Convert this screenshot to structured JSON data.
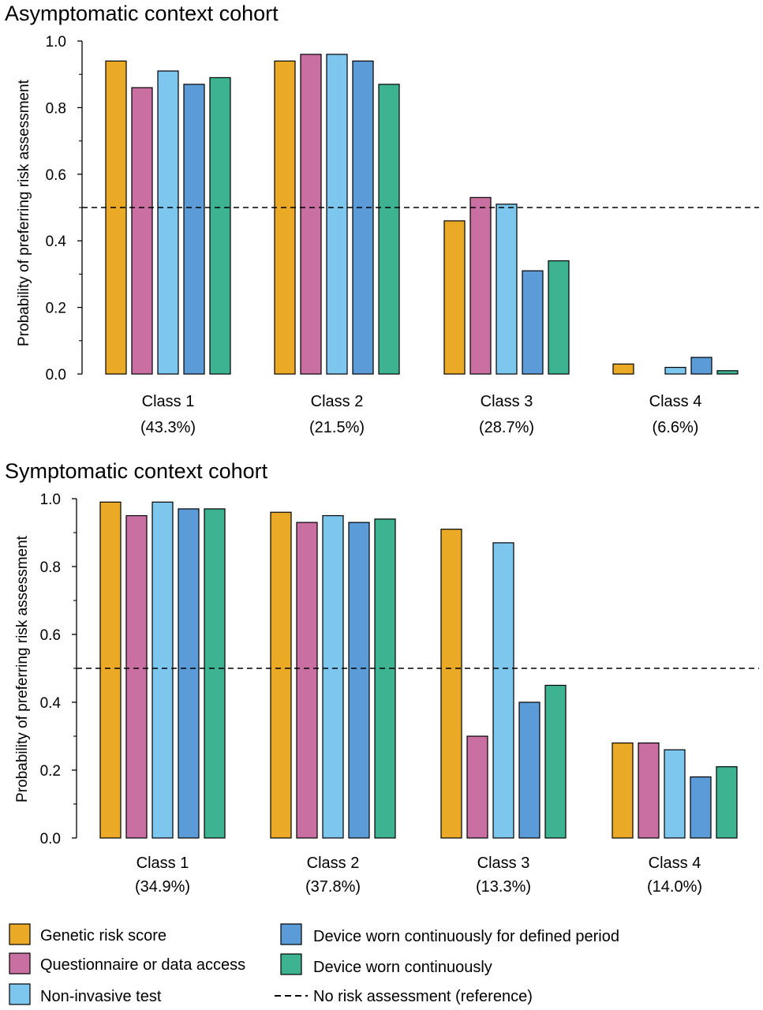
{
  "colors": {
    "Genetic risk score": "#EAAA26",
    "Questionnaire or data access": "#C96FA2",
    "Non-invasive test": "#7DC6EE",
    "Device worn continuously for defined period": "#5B9BD7",
    "Device worn continuously": "#3EB392"
  },
  "legend": {
    "items": [
      "Genetic risk score",
      "Questionnaire or data access",
      "Non-invasive test",
      "Device worn continuously for defined period",
      "Device worn continuously"
    ],
    "reference_label": "No risk assessment (reference)"
  },
  "chart_data": [
    {
      "type": "bar",
      "title": "Asymptomatic context cohort",
      "ylabel": "Probability of preferring risk assessment",
      "ylim": [
        0,
        1.0
      ],
      "yticks": [
        "0.0",
        "0.2",
        "0.4",
        "0.6",
        "0.8",
        "1.0"
      ],
      "reference_line": 0.5,
      "categories": [
        "Class 1",
        "Class 2",
        "Class 3",
        "Class 4"
      ],
      "category_shares": [
        "(43.3%)",
        "(21.5%)",
        "(28.7%)",
        "(6.6%)"
      ],
      "series": [
        {
          "name": "Genetic risk score",
          "values": [
            0.94,
            0.94,
            0.46,
            0.03
          ]
        },
        {
          "name": "Questionnaire or data access",
          "values": [
            0.86,
            0.96,
            0.53,
            0.0
          ]
        },
        {
          "name": "Non-invasive test",
          "values": [
            0.91,
            0.96,
            0.51,
            0.02
          ]
        },
        {
          "name": "Device worn continuously for defined period",
          "values": [
            0.87,
            0.94,
            0.31,
            0.05
          ]
        },
        {
          "name": "Device worn continuously",
          "values": [
            0.89,
            0.87,
            0.34,
            0.01
          ]
        }
      ]
    },
    {
      "type": "bar",
      "title": "Symptomatic context cohort",
      "ylabel": "Probability of preferring risk assessment",
      "ylim": [
        0,
        1.0
      ],
      "yticks": [
        "0.0",
        "0.2",
        "0.4",
        "0.6",
        "0.8",
        "1.0"
      ],
      "reference_line": 0.5,
      "categories": [
        "Class 1",
        "Class 2",
        "Class 3",
        "Class 4"
      ],
      "category_shares": [
        "(34.9%)",
        "(37.8%)",
        "(13.3%)",
        "(14.0%)"
      ],
      "series": [
        {
          "name": "Genetic risk score",
          "values": [
            0.99,
            0.96,
            0.91,
            0.28
          ]
        },
        {
          "name": "Questionnaire or data access",
          "values": [
            0.95,
            0.93,
            0.3,
            0.28
          ]
        },
        {
          "name": "Non-invasive test",
          "values": [
            0.99,
            0.95,
            0.87,
            0.26
          ]
        },
        {
          "name": "Device worn continuously for defined period",
          "values": [
            0.97,
            0.93,
            0.4,
            0.18
          ]
        },
        {
          "name": "Device worn continuously",
          "values": [
            0.97,
            0.94,
            0.45,
            0.21
          ]
        }
      ]
    }
  ]
}
